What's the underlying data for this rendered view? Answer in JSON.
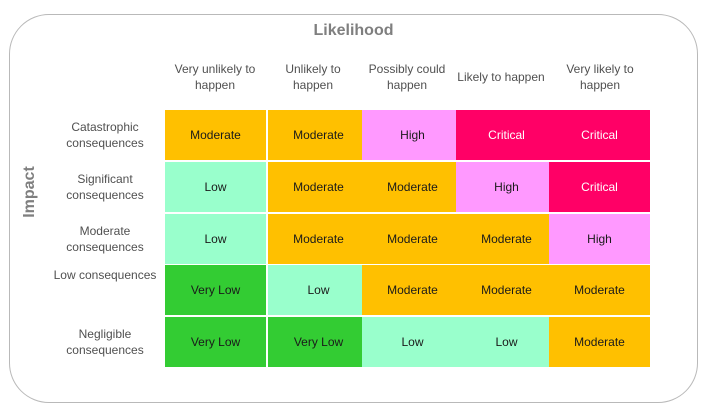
{
  "matrix": {
    "x_axis_title": "Likelihood",
    "y_axis_title": "Impact",
    "columns": [
      "Very unlikely to happen",
      "Unlikely to happen",
      "Possibly could happen",
      "Likely to happen",
      "Very likely to happen"
    ],
    "rows": [
      {
        "label": "Catastrophic consequences",
        "cells": [
          "Moderate",
          "Moderate",
          "High",
          "Critical",
          "Critical"
        ]
      },
      {
        "label": "Significant consequences",
        "cells": [
          "Low",
          "Moderate",
          "Moderate",
          "High",
          "Critical"
        ]
      },
      {
        "label": "Moderate consequences",
        "cells": [
          "Low",
          "Moderate",
          "Moderate",
          "Moderate",
          "High"
        ]
      },
      {
        "label": "Low consequences",
        "cells": [
          "Very Low",
          "Low",
          "Moderate",
          "Moderate",
          "Moderate"
        ]
      },
      {
        "label": "Negligible consequences",
        "cells": [
          "Very Low",
          "Very Low",
          "Low",
          "Low",
          "Moderate"
        ]
      }
    ],
    "level_colors": {
      "Very Low": "#33cc33",
      "Low": "#99ffcc",
      "Moderate": "#ffc000",
      "High": "#ff99ff",
      "Critical": "#ff0066"
    }
  }
}
